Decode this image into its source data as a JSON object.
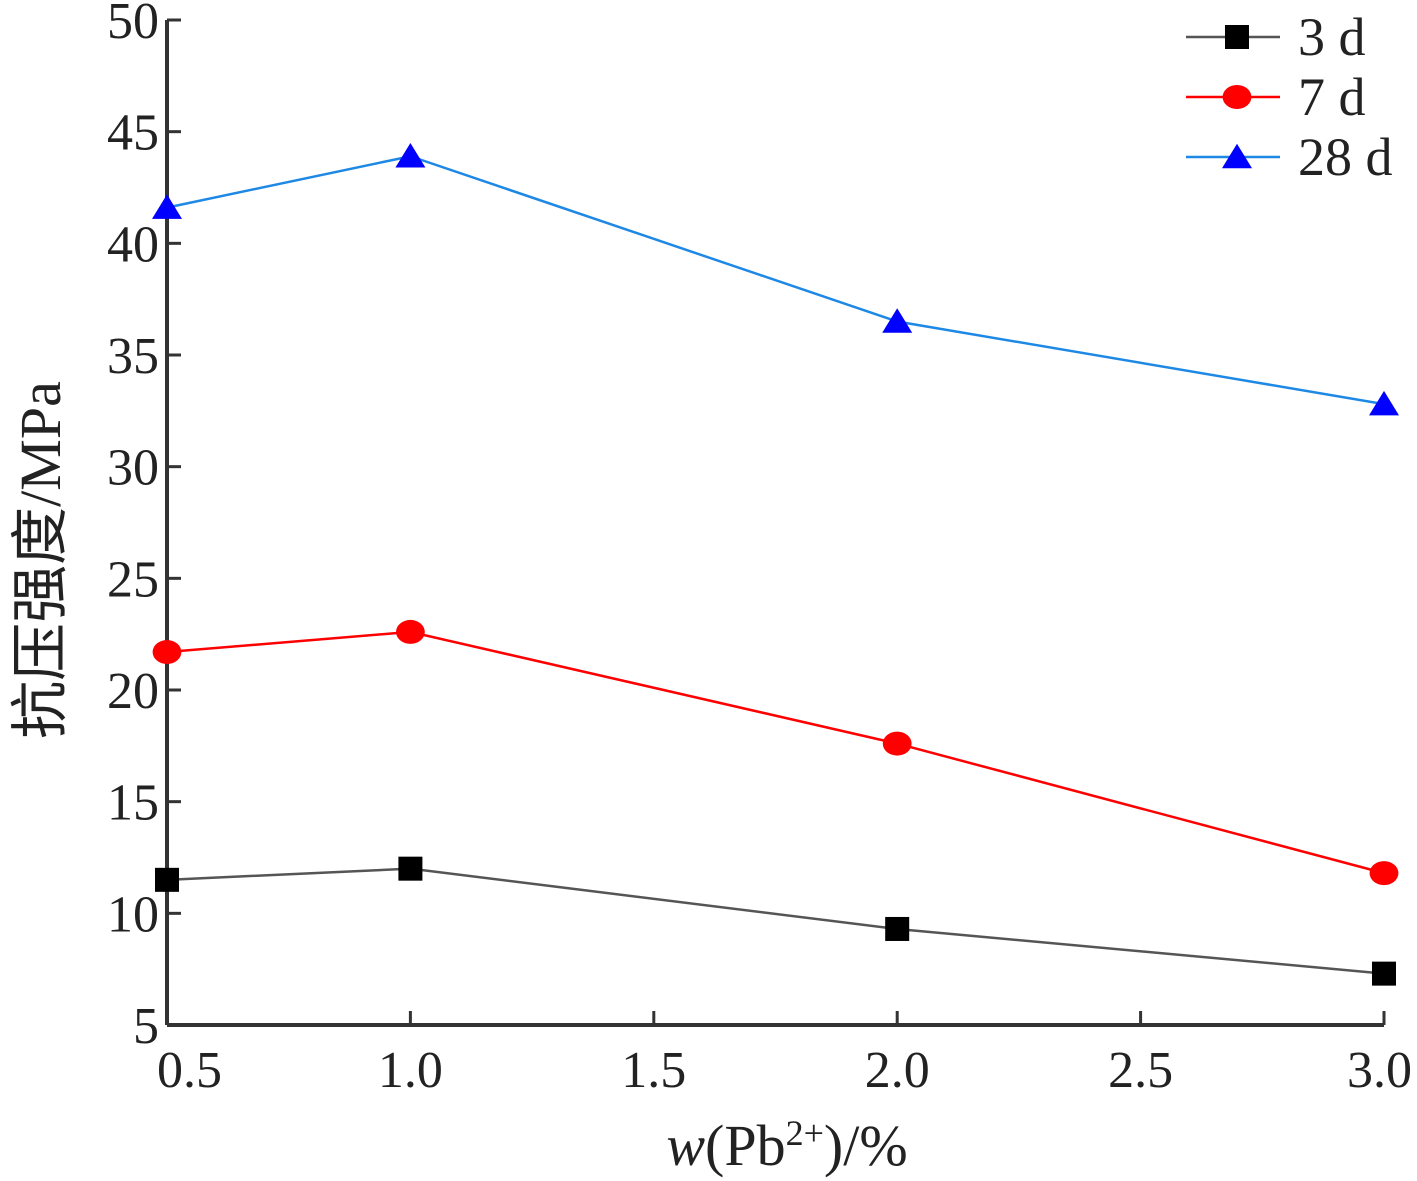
{
  "chart_data": {
    "type": "line",
    "x": [
      0.5,
      1.0,
      2.0,
      3.0
    ],
    "xlim": [
      0.5,
      3.0
    ],
    "ylim": [
      5,
      50
    ],
    "xticks": [
      "0.5",
      "1.0",
      "1.5",
      "2.0",
      "2.5",
      "3.0"
    ],
    "xtick_values": [
      0.5,
      1.0,
      1.5,
      2.0,
      2.5,
      3.0
    ],
    "yticks": [
      "5",
      "10",
      "15",
      "20",
      "25",
      "30",
      "35",
      "40",
      "45",
      "50"
    ],
    "ytick_values": [
      5,
      10,
      15,
      20,
      25,
      30,
      35,
      40,
      45,
      50
    ],
    "ylabel": "抗压强度/MPa",
    "xlabel": {
      "italic": "w",
      "prefix": "(Pb",
      "superscript": "2+",
      "suffix": ")/%"
    },
    "legend_position": "top-right",
    "grid": false,
    "series": [
      {
        "name": "3 d",
        "values": [
          11.5,
          12.0,
          9.3,
          7.3
        ],
        "color": "#000000",
        "marker": "square",
        "line_color": "#555555"
      },
      {
        "name": "7 d",
        "values": [
          21.7,
          22.6,
          17.6,
          11.8
        ],
        "color": "#ff0000",
        "marker": "circle",
        "line_color": "#ff0000"
      },
      {
        "name": "28 d",
        "values": [
          41.6,
          43.9,
          36.5,
          32.8
        ],
        "color": "#0000ff",
        "marker": "triangle",
        "line_color": "#1e88e5"
      }
    ]
  }
}
